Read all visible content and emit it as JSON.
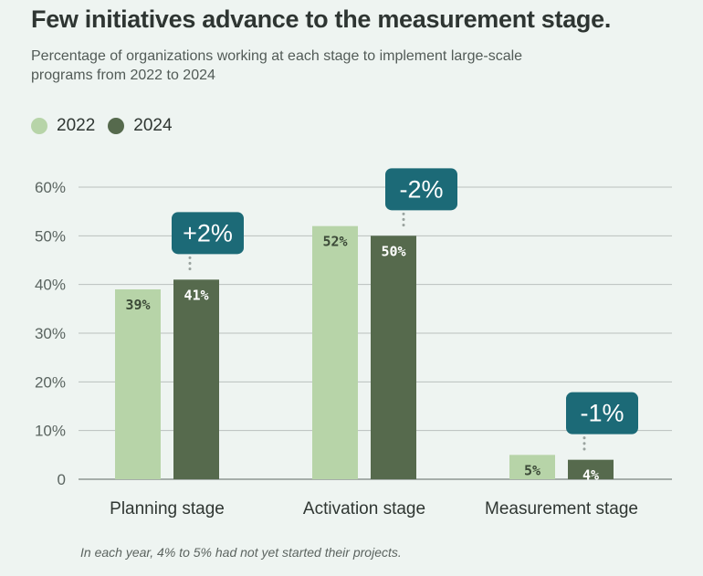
{
  "header": {
    "title": "Few initiatives advance to the measurement stage.",
    "subtitle": "Percentage of organizations working at each stage to implement large-scale programs from 2022 to 2024"
  },
  "legend": {
    "items": [
      {
        "label": "2022",
        "color": "#b7d4a8"
      },
      {
        "label": "2024",
        "color": "#566a4d"
      }
    ]
  },
  "footnote": "In each year, 4% to 5% had not yet started their projects.",
  "colors": {
    "series_2022": "#b7d4a8",
    "series_2024": "#566a4d",
    "callout": "#1c6a77",
    "grid": "#b9c0bd",
    "axis": "#7b8480"
  },
  "chart_data": {
    "type": "bar",
    "title": "Few initiatives advance to the measurement stage.",
    "categories": [
      "Planning stage",
      "Activation stage",
      "Measurement stage"
    ],
    "series": [
      {
        "name": "2022",
        "values": [
          39,
          52,
          5
        ],
        "labels": [
          "39%",
          "52%",
          "5%"
        ]
      },
      {
        "name": "2024",
        "values": [
          41,
          50,
          4
        ],
        "labels": [
          "41%",
          "50%",
          "4%"
        ]
      }
    ],
    "changes": [
      "+2%",
      "-2%",
      "-1%"
    ],
    "yticks": [
      0,
      10,
      20,
      30,
      40,
      50,
      60
    ],
    "ytick_labels": [
      "0",
      "10%",
      "20%",
      "30%",
      "40%",
      "50%",
      "60%"
    ],
    "ylim": [
      0,
      60
    ],
    "xlabel": "",
    "ylabel": "",
    "grid": true,
    "legend_position": "top-left"
  }
}
